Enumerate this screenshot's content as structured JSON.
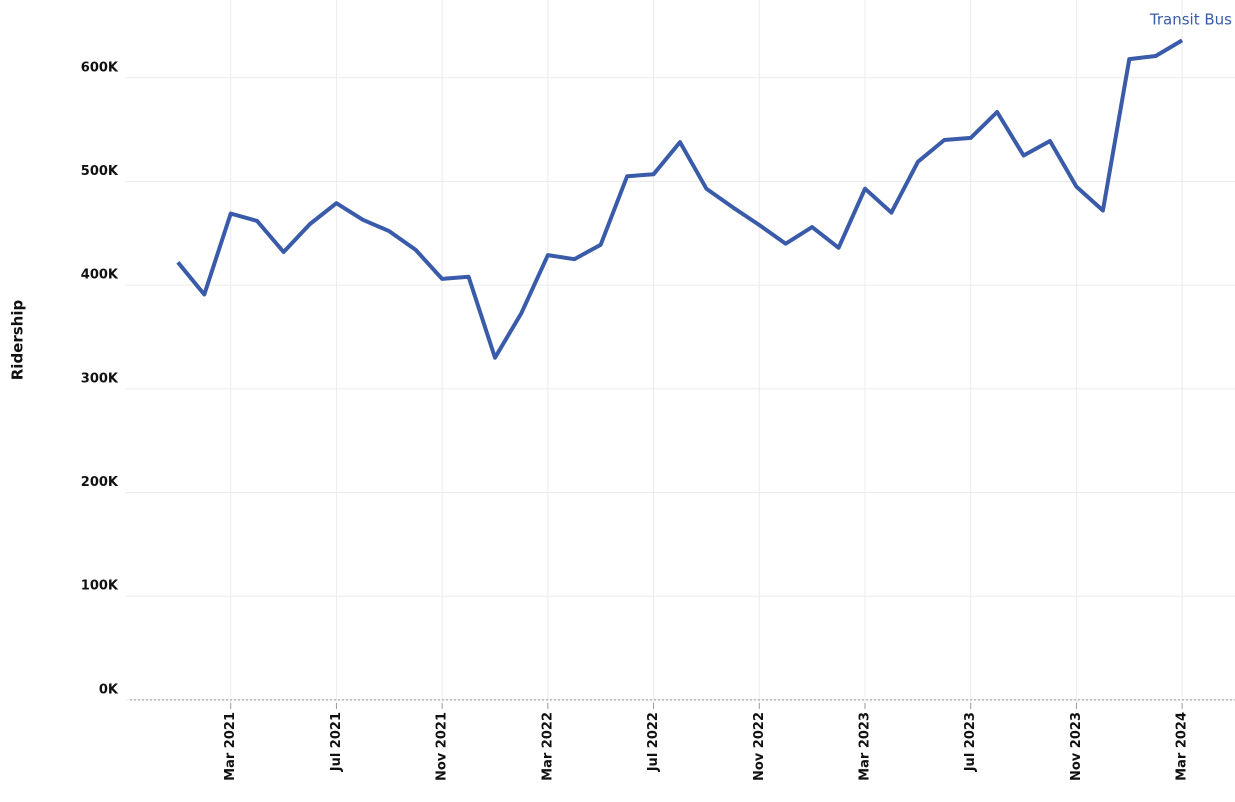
{
  "chart_data": {
    "type": "line",
    "y_label": "Ridership",
    "x": [
      "2021-01",
      "2021-02",
      "2021-03",
      "2021-04",
      "2021-05",
      "2021-06",
      "2021-07",
      "2021-08",
      "2021-09",
      "2021-10",
      "2021-11",
      "2021-12",
      "2022-01",
      "2022-02",
      "2022-03",
      "2022-04",
      "2022-05",
      "2022-06",
      "2022-07",
      "2022-08",
      "2022-09",
      "2022-10",
      "2022-11",
      "2022-12",
      "2023-01",
      "2023-02",
      "2023-03",
      "2023-04",
      "2023-05",
      "2023-06",
      "2023-07",
      "2023-08",
      "2023-09",
      "2023-10",
      "2023-11",
      "2023-12",
      "2024-01",
      "2024-02",
      "2024-03"
    ],
    "series": [
      {
        "name": "Transit Bus",
        "color": "#3a5ba9",
        "values": [
          422000,
          391000,
          469000,
          462000,
          432000,
          459000,
          479000,
          463000,
          452000,
          434000,
          406000,
          408000,
          330000,
          373000,
          429000,
          425000,
          439000,
          505000,
          507000,
          538000,
          493000,
          475000,
          458000,
          440000,
          456000,
          436000,
          493000,
          470000,
          519000,
          540000,
          542000,
          567000,
          525000,
          539000,
          495000,
          472000,
          618000,
          621000,
          636000
        ]
      }
    ],
    "xlim": [
      "2020-11",
      "2024-05"
    ],
    "xticks": [
      {
        "value": "2021-03",
        "label": "Mar 2021"
      },
      {
        "value": "2021-07",
        "label": "Jul 2021"
      },
      {
        "value": "2021-11",
        "label": "Nov 2021"
      },
      {
        "value": "2022-03",
        "label": "Mar 2022"
      },
      {
        "value": "2022-07",
        "label": "Jul 2022"
      },
      {
        "value": "2022-11",
        "label": "Nov 2022"
      },
      {
        "value": "2023-03",
        "label": "Mar 2023"
      },
      {
        "value": "2023-07",
        "label": "Jul 2023"
      },
      {
        "value": "2023-11",
        "label": "Nov 2023"
      },
      {
        "value": "2024-03",
        "label": "Mar 2024"
      }
    ],
    "ylim": [
      -3000,
      675000
    ],
    "yticks": [
      {
        "value": 0,
        "label": "0K"
      },
      {
        "value": 100000,
        "label": "100K"
      },
      {
        "value": 200000,
        "label": "200K"
      },
      {
        "value": 300000,
        "label": "300K"
      },
      {
        "value": 400000,
        "label": "400K"
      },
      {
        "value": 500000,
        "label": "500K"
      },
      {
        "value": 600000,
        "label": "600K"
      }
    ],
    "grid": true
  }
}
